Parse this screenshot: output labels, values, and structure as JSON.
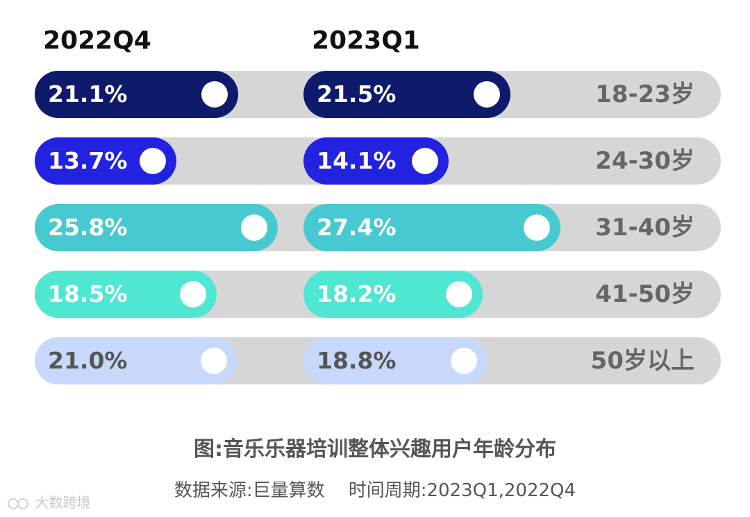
{
  "chart_data": {
    "type": "bar",
    "layout": "horizontal-paired",
    "periods": [
      "2022Q4",
      "2023Q1"
    ],
    "categories": [
      "18-23岁",
      "24-30岁",
      "31-40岁",
      "41-50岁",
      "50岁以上"
    ],
    "series": [
      {
        "name": "2022Q4",
        "values": [
          21.1,
          13.7,
          25.8,
          18.5,
          21.0
        ],
        "labels": [
          "21.1%",
          "13.7%",
          "25.8%",
          "18.5%",
          "21.0%"
        ]
      },
      {
        "name": "2023Q1",
        "values": [
          21.5,
          14.1,
          27.4,
          18.2,
          18.8
        ],
        "labels": [
          "21.5%",
          "14.1%",
          "27.4%",
          "18.2%",
          "18.8%"
        ]
      }
    ],
    "category_colors": [
      "#0e1a6b",
      "#2222e0",
      "#47c9d2",
      "#4fe6d2",
      "#c8d8fb"
    ],
    "label_colors": [
      "#ffffff",
      "#ffffff",
      "#ffffff",
      "#ffffff",
      "#555555"
    ],
    "track_color": "#d6d6d6",
    "unit": "%"
  },
  "caption": "图:音乐乐器培训整体兴趣用户年龄分布",
  "source": {
    "left": "数据来源:巨量算数",
    "right": "时间周期:2023Q1,2022Q4"
  },
  "watermark": "大数跨境"
}
